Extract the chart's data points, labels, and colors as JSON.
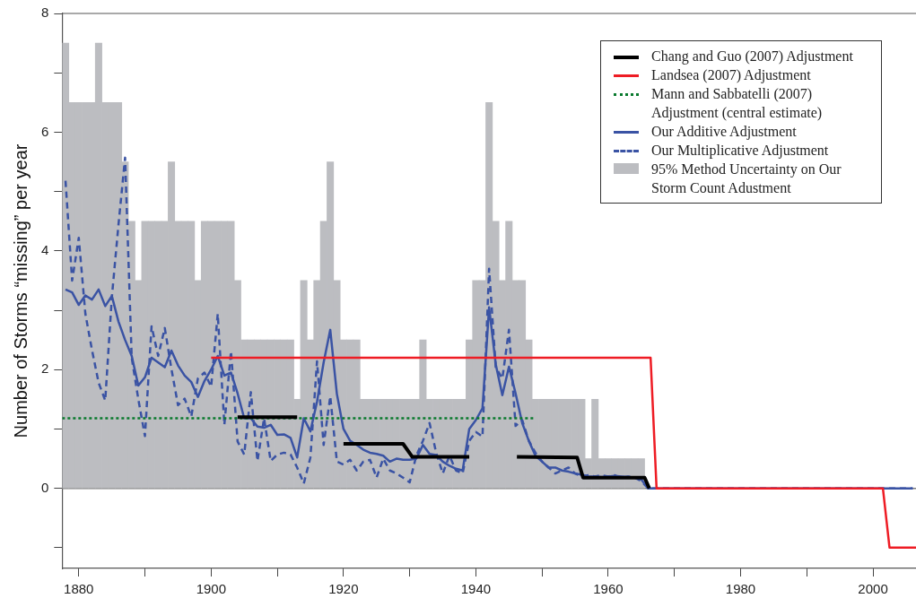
{
  "chart_data": {
    "type": "line",
    "ylabel": "Number of Storms “missing” per year",
    "x": [
      1878,
      1879,
      1880,
      1881,
      1882,
      1883,
      1884,
      1885,
      1886,
      1887,
      1888,
      1889,
      1890,
      1891,
      1892,
      1893,
      1894,
      1895,
      1896,
      1897,
      1898,
      1899,
      1900,
      1901,
      1902,
      1903,
      1904,
      1905,
      1906,
      1907,
      1908,
      1909,
      1910,
      1911,
      1912,
      1913,
      1914,
      1915,
      1916,
      1917,
      1918,
      1919,
      1920,
      1921,
      1922,
      1923,
      1924,
      1925,
      1926,
      1927,
      1928,
      1929,
      1930,
      1931,
      1932,
      1933,
      1934,
      1935,
      1936,
      1937,
      1938,
      1939,
      1940,
      1941,
      1942,
      1943,
      1944,
      1945,
      1946,
      1947,
      1948,
      1949,
      1950,
      1951,
      1952,
      1953,
      1954,
      1955,
      1956,
      1957,
      1958,
      1959,
      1960,
      1961,
      1962,
      1963,
      1964,
      1965,
      1966,
      2006
    ],
    "series": [
      {
        "name": "Chang and Guo (2007) Adjustment",
        "color": "#000000",
        "line_style": "solid",
        "x": [
          1904,
          1913,
          1916,
          1920,
          1929,
          1930.4,
          1939,
          1942,
          1946.2,
          1955.3,
          1956.2,
          1965.5,
          1966.2
        ],
        "values": [
          1.2,
          1.2,
          null,
          0.75,
          0.75,
          0.53,
          0.53,
          null,
          0.53,
          0.52,
          0.18,
          0.18,
          0
        ]
      },
      {
        "name": "Landsea (2007) Adjustment",
        "color": "#ee1c24",
        "line_style": "solid",
        "x": [
          1900,
          1966.4,
          1967.3,
          2001.5,
          2002.5,
          2006.5
        ],
        "values": [
          2.2,
          2.2,
          0,
          0,
          -1,
          -1
        ]
      },
      {
        "name": "Mann and Sabbatelli (2007) Adjustment (central estimate)",
        "color": "#0a7a2e",
        "line_style": "dotted",
        "x": [
          1877.5,
          1948.7
        ],
        "values": [
          1.18,
          1.18
        ]
      },
      {
        "name": "Our Additive Adjustment",
        "color": "#3a53a4",
        "line_style": "solid",
        "values": [
          3.35,
          3.3,
          3.09,
          3.25,
          3.18,
          3.35,
          3.07,
          3.24,
          2.81,
          2.5,
          2.23,
          1.73,
          1.87,
          2.2,
          2.12,
          2.04,
          2.32,
          2.07,
          1.9,
          1.79,
          1.54,
          1.81,
          2.0,
          2.23,
          1.9,
          1.95,
          1.6,
          1.18,
          1.18,
          1.04,
          1.02,
          1.07,
          0.9,
          0.91,
          0.85,
          0.52,
          1.18,
          0.96,
          1.46,
          2.12,
          2.67,
          1.59,
          1.0,
          0.8,
          0.73,
          0.65,
          0.6,
          0.58,
          0.55,
          0.45,
          0.5,
          0.48,
          0.48,
          0.5,
          0.73,
          0.58,
          0.56,
          0.45,
          0.38,
          0.33,
          0.3,
          1.0,
          1.15,
          1.35,
          3.05,
          2.09,
          1.57,
          2.05,
          1.6,
          1.1,
          0.8,
          0.55,
          0.45,
          0.35,
          0.35,
          0.3,
          0.28,
          0.25,
          0.23,
          0.2,
          0.2,
          0.19,
          0.2,
          0.21,
          0.2,
          0.19,
          0.18,
          0.15,
          0,
          0
        ]
      },
      {
        "name": "Our Multiplicative Adjustment",
        "color": "#3a53a4",
        "line_style": "dashed",
        "values": [
          5.18,
          3.5,
          4.22,
          2.94,
          2.33,
          1.78,
          1.48,
          3.22,
          4.44,
          5.57,
          2.2,
          1.5,
          0.88,
          2.73,
          2.23,
          2.7,
          2.01,
          1.4,
          1.51,
          1.21,
          1.85,
          1.95,
          1.71,
          2.94,
          1.07,
          2.31,
          0.79,
          0.57,
          1.62,
          0.46,
          1.18,
          0.46,
          0.57,
          0.6,
          0.57,
          0.35,
          0.08,
          0.52,
          2.14,
          0.73,
          1.55,
          0.45,
          0.4,
          0.48,
          0.3,
          0.45,
          0.48,
          0.18,
          0.5,
          0.3,
          0.25,
          0.18,
          0.1,
          0.55,
          0.8,
          1.1,
          0.6,
          0.25,
          0.55,
          0.3,
          0.25,
          0.8,
          0.95,
          0.87,
          3.7,
          2.04,
          1.85,
          2.67,
          1.05,
          1.15,
          0.8,
          0.6,
          0.45,
          0.35,
          0.25,
          0.3,
          0.35,
          0.25,
          0.2,
          0.22,
          0.2,
          0.22,
          0.2,
          0.22,
          0.17,
          0.2,
          0.18,
          0.12,
          0,
          0
        ]
      },
      {
        "name": "95% Method Uncertainty on Our Storm Count Adustment",
        "type": "histogram",
        "color": "#bcbdc1",
        "bins": [
          1877.5,
          1878.5,
          1879.5,
          1880.5,
          1881.5,
          1882.5,
          1883.5,
          1884.5,
          1885.5,
          1886.5,
          1887.5,
          1888.5,
          1889.5,
          1890.5,
          1891.5,
          1892.5,
          1893.5,
          1894.5,
          1895.5,
          1896.5,
          1897.5,
          1898.5,
          1899.5,
          1900.5,
          1901.5,
          1902.5,
          1903.5,
          1904.5,
          1905.5,
          1906.5,
          1907.5,
          1908.5,
          1909.5,
          1910.5,
          1911.5,
          1912.5,
          1913.5,
          1914.5,
          1915.5,
          1916.5,
          1917.5,
          1918.5,
          1919.5,
          1920.5,
          1921.5,
          1922.5,
          1923.5,
          1924.5,
          1925.5,
          1926.5,
          1927.5,
          1928.5,
          1929.5,
          1930.5,
          1931.5,
          1932.5,
          1933.5,
          1934.5,
          1935.5,
          1936.5,
          1937.5,
          1938.5,
          1939.5,
          1940.5,
          1941.5,
          1942.5,
          1943.5,
          1944.5,
          1945.5,
          1946.5,
          1947.5,
          1948.5,
          1949.5,
          1950.5,
          1951.5,
          1952.5,
          1953.5,
          1954.5,
          1955.5,
          1956.5,
          1957.5,
          1958.5,
          1959.5,
          1960.5,
          1961.5,
          1962.5,
          1963.5,
          1964.5,
          1965.5
        ],
        "values": [
          7.5,
          6.5,
          6.5,
          6.5,
          6.5,
          7.5,
          6.5,
          6.5,
          6.5,
          5.5,
          4.5,
          3.5,
          4.5,
          4.5,
          4.5,
          4.5,
          5.5,
          4.5,
          4.5,
          4.5,
          3.5,
          4.5,
          4.5,
          4.5,
          4.5,
          4.5,
          3.5,
          2.5,
          2.5,
          2.5,
          2.5,
          2.5,
          2.5,
          2.5,
          2.5,
          1.5,
          3.5,
          2.5,
          3.5,
          4.5,
          5.5,
          3.5,
          2.5,
          2.5,
          2.5,
          1.5,
          1.5,
          1.5,
          1.5,
          1.5,
          1.5,
          1.5,
          1.5,
          1.5,
          2.5,
          1.5,
          1.5,
          1.5,
          1.5,
          1.5,
          1.5,
          2.5,
          3.5,
          3.5,
          6.5,
          4.5,
          3.5,
          4.5,
          3.5,
          3.5,
          2.5,
          1.5,
          1.5,
          1.5,
          1.5,
          1.5,
          1.5,
          1.5,
          1.5,
          0.5,
          1.5,
          0.5,
          0.5,
          0.5,
          0.5,
          0.5,
          0.5,
          0.5
        ]
      }
    ],
    "xlim": [
      1877.5,
      2006.5
    ],
    "xticks": [
      1880,
      {
        "value": 1890,
        "label": null
      },
      1900,
      {
        "value": 1910,
        "label": null
      },
      1920,
      {
        "value": 1930,
        "label": null
      },
      1940,
      {
        "value": 1950,
        "label": null
      },
      1960,
      {
        "value": 1970,
        "label": null
      },
      1980,
      {
        "value": 1990,
        "label": null
      },
      2000
    ],
    "ylim": [
      -1.35,
      8
    ],
    "yticks": [
      {
        "value": -1,
        "label": null
      },
      0,
      {
        "value": 1,
        "label": null
      },
      2,
      {
        "value": 3,
        "label": null
      },
      4,
      {
        "value": 5,
        "label": null
      },
      6,
      {
        "value": 7,
        "label": null
      },
      8
    ],
    "ref_lines": [
      {
        "axis": "y",
        "value": 0,
        "color": "#7f7f7f"
      }
    ],
    "grid": false,
    "legend": "top right",
    "marker": "none"
  }
}
